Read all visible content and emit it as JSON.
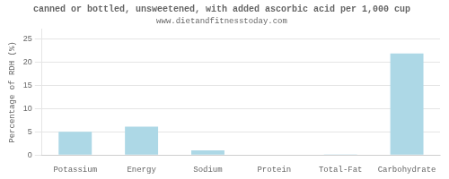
{
  "chart_data": {
    "type": "bar",
    "title": "canned or bottled, unsweetened, with added ascorbic acid per 1,000 cup",
    "subtitle": "www.dietandfitnesstoday.com",
    "categories": [
      "Potassium",
      "Energy",
      "Sodium",
      "Protein",
      "Total-Fat",
      "Carbohydrate"
    ],
    "values": [
      5.0,
      6.1,
      1.0,
      0.1,
      0.05,
      21.8
    ],
    "color": "#add8e6",
    "ylabel": "Percentage of RDH (%)",
    "ylim": [
      0,
      27
    ],
    "yticks": [
      0,
      5,
      10,
      15,
      20,
      25
    ],
    "grid": true
  }
}
